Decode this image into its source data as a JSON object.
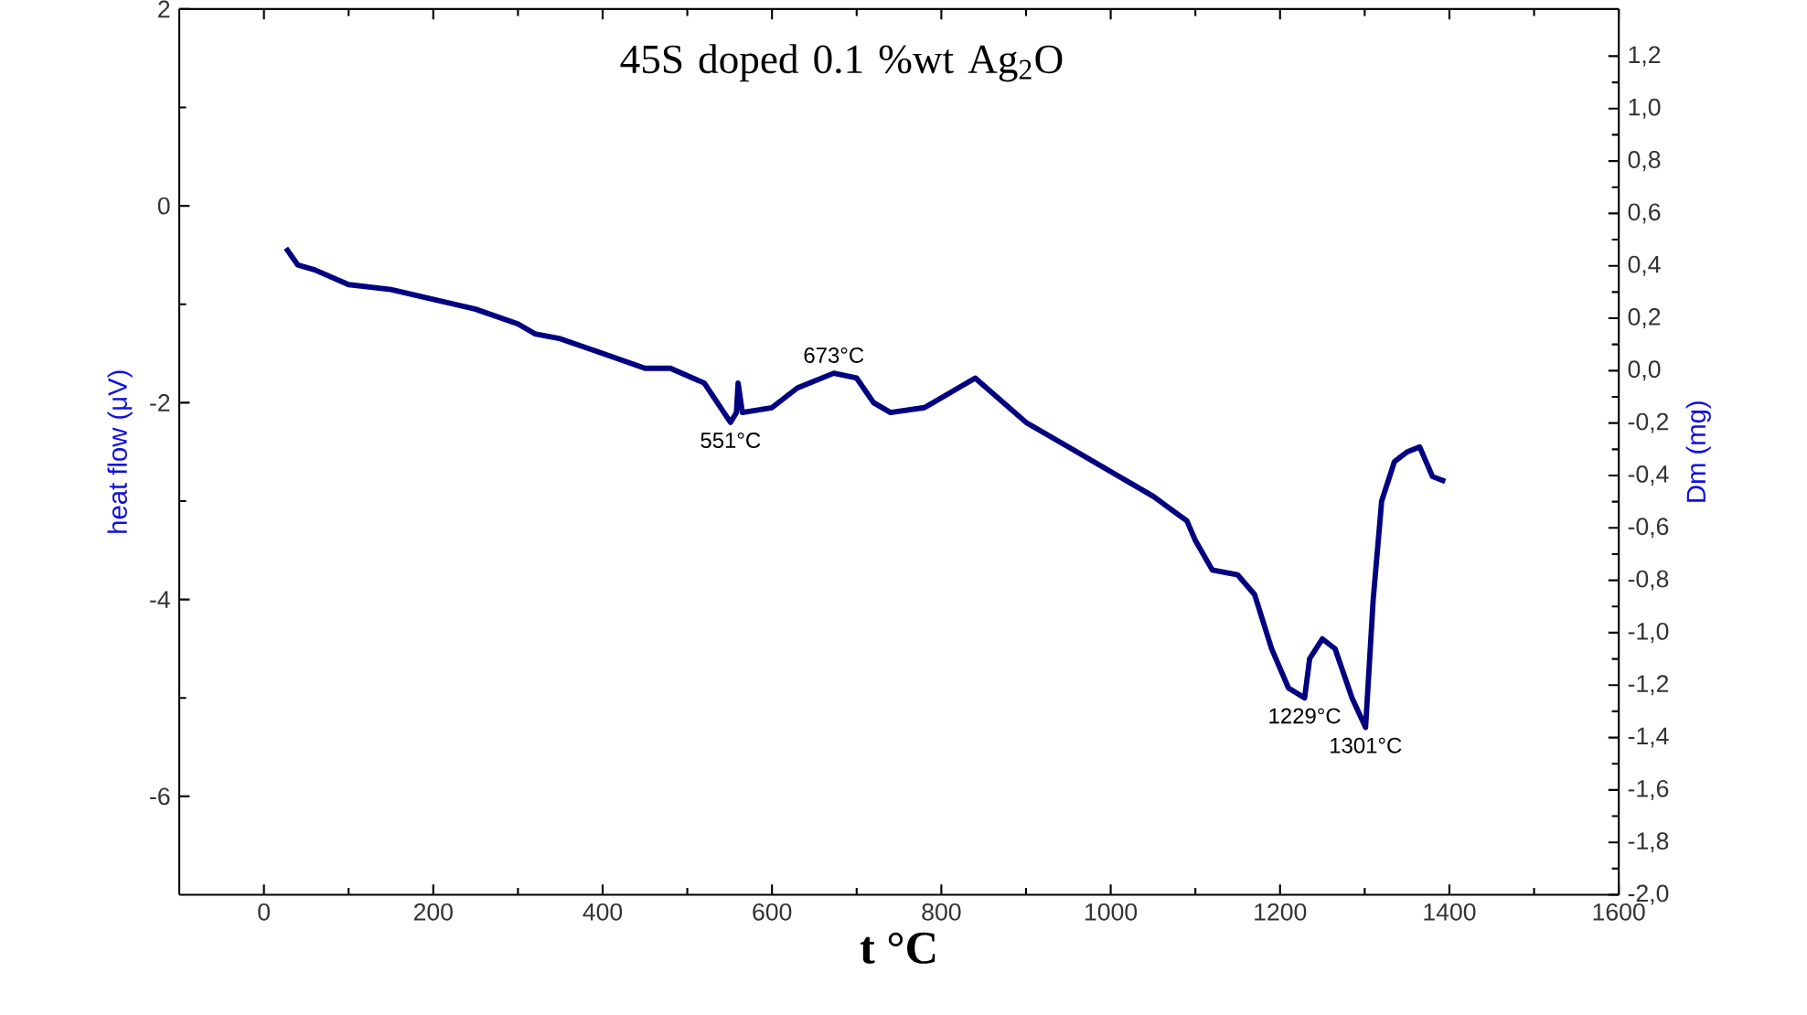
{
  "chart_data": {
    "type": "line",
    "title": "45S doped 0.1 %wt Ag$_{2}$O",
    "xlabel": "t °C",
    "ylabel": "heat flow (μV)",
    "y2label": "Dm (mg)",
    "x": [
      26,
      40,
      60,
      100,
      150,
      200,
      250,
      300,
      320,
      350,
      400,
      450,
      480,
      520,
      551,
      558,
      560,
      565,
      600,
      630,
      673,
      700,
      720,
      740,
      780,
      820,
      840,
      860,
      900,
      950,
      1000,
      1050,
      1090,
      1100,
      1120,
      1150,
      1170,
      1190,
      1210,
      1229,
      1235,
      1250,
      1265,
      1285,
      1301,
      1310,
      1320,
      1335,
      1350,
      1365,
      1380,
      1395
    ],
    "series": [
      {
        "color": "#000080",
        "values": [
          -0.43,
          -0.6,
          -0.65,
          -0.8,
          -0.85,
          -0.95,
          -1.05,
          -1.2,
          -1.3,
          -1.35,
          -1.5,
          -1.65,
          -1.65,
          -1.8,
          -2.2,
          -2.1,
          -1.8,
          -2.1,
          -2.05,
          -1.85,
          -1.7,
          -1.75,
          -2.0,
          -2.1,
          -2.05,
          -1.85,
          -1.75,
          -1.9,
          -2.2,
          -2.45,
          -2.7,
          -2.95,
          -3.2,
          -3.4,
          -3.7,
          -3.75,
          -3.95,
          -4.5,
          -4.9,
          -5.0,
          -4.6,
          -4.4,
          -4.5,
          -5.0,
          -5.3,
          -4.0,
          -3.0,
          -2.6,
          -2.5,
          -2.45,
          -2.75,
          -2.8
        ]
      }
    ],
    "xlim": [
      -100,
      1600
    ],
    "xticks": [
      0,
      200,
      400,
      600,
      800,
      1000,
      1200,
      1400,
      1600
    ],
    "ylim": [
      -7,
      2
    ],
    "yticks": [
      -6,
      -4,
      -2,
      0,
      2
    ],
    "y2lim": [
      -2.0,
      1.38
    ],
    "y2ticks": [
      {
        "value": 1.2,
        "label": "1,2"
      },
      {
        "value": 1.0,
        "label": "1,0"
      },
      {
        "value": 0.8,
        "label": "0,8"
      },
      {
        "value": 0.6,
        "label": "0,6"
      },
      {
        "value": 0.4,
        "label": "0,4"
      },
      {
        "value": 0.2,
        "label": "0,2"
      },
      {
        "value": 0.0,
        "label": "0,0"
      },
      {
        "value": -0.2,
        "label": "-0,2"
      },
      {
        "value": -0.4,
        "label": "-0,4"
      },
      {
        "value": -0.6,
        "label": "-0,6"
      },
      {
        "value": -0.8,
        "label": "-0,8"
      },
      {
        "value": -1.0,
        "label": "-1,0"
      },
      {
        "value": -1.2,
        "label": "-1,2"
      },
      {
        "value": -1.4,
        "label": "-1,4"
      },
      {
        "value": -1.6,
        "label": "-1,6"
      },
      {
        "value": -1.8,
        "label": "-1,8"
      },
      {
        "value": -2.0,
        "label": "-2,0"
      }
    ],
    "annotations": [
      {
        "text": "551°C",
        "x": 551,
        "y": -2.2
      },
      {
        "text": "673°C",
        "x": 673,
        "y": -1.7
      },
      {
        "text": "1229°C",
        "x": 1229,
        "y": -5.0
      },
      {
        "text": "1301°C",
        "x": 1301,
        "y": -5.3
      }
    ],
    "grid": false,
    "marker": "none",
    "line_style": "solid"
  }
}
